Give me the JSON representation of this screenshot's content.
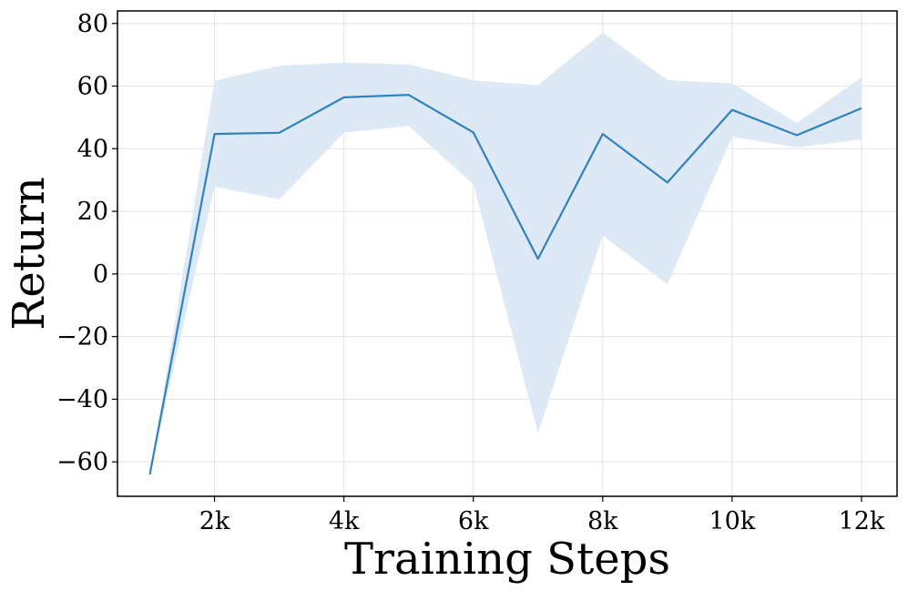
{
  "chart_data": {
    "type": "line",
    "xlabel": "Training Steps",
    "ylabel": "Return",
    "xlim": [
      500,
      12550
    ],
    "ylim": [
      -71,
      84
    ],
    "x_ticks": [
      2000,
      4000,
      6000,
      8000,
      10000,
      12000
    ],
    "x_tick_labels": [
      "2k",
      "4k",
      "6k",
      "8k",
      "10k",
      "12k"
    ],
    "y_ticks": [
      -60,
      -40,
      -20,
      0,
      20,
      40,
      60,
      80
    ],
    "y_tick_labels": [
      "−60",
      "−40",
      "−20",
      "0",
      "20",
      "40",
      "60",
      "80"
    ],
    "grid": true,
    "colors": {
      "line": "#3182bd",
      "band": "#dde9f4"
    },
    "series": [
      {
        "x": [
          1000,
          2000,
          3000,
          4000,
          5000,
          6000,
          7000,
          8000,
          9000,
          10000,
          11000,
          12000
        ],
        "mean": [
          -64,
          44.7,
          45.1,
          56.4,
          57.2,
          45.2,
          4.8,
          44.7,
          29.2,
          52.4,
          44.3,
          52.9
        ],
        "upper": [
          -64,
          61.7,
          66.5,
          67.5,
          66.9,
          61.8,
          60.3,
          77.1,
          61.9,
          60.9,
          48.2,
          62.8
        ],
        "lower": [
          -64,
          27.9,
          23.8,
          45.1,
          47.3,
          28.6,
          -50.8,
          12.3,
          -3.3,
          43.8,
          40.4,
          43.0
        ]
      }
    ]
  }
}
